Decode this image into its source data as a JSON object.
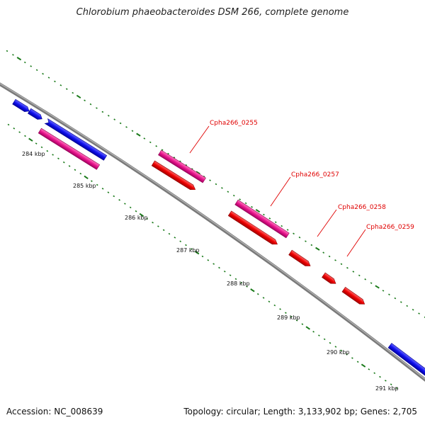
{
  "title": "Chlorobium phaeobacteroides DSM 266, complete genome",
  "footer": {
    "accession": "Accession: NC_008639",
    "summary": "Topology: circular; Length: 3,133,902 bp; Genes: 2,705"
  },
  "colors": {
    "backbone": "#8a8a8a",
    "tick": "#1a7a1a",
    "gene_blue": "#1010ee",
    "gene_magenta": "#e8148c",
    "gene_red": "#ee0000",
    "label": "#e00000"
  },
  "scale_labels": [
    "284 kbp",
    "285 kbp",
    "286 kbp",
    "287 kbp",
    "288 kbp",
    "289 kbp",
    "290 kbp",
    "291 kbp"
  ],
  "gene_labels": [
    "Cpha266_0255",
    "Cpha266_0257",
    "Cpha266_0258",
    "Cpha266_0259"
  ],
  "features": [
    {
      "kind": "blue"
    },
    {
      "kind": "blue"
    },
    {
      "kind": "blue"
    },
    {
      "kind": "magenta"
    },
    {
      "kind": "magenta"
    },
    {
      "kind": "magenta"
    },
    {
      "kind": "red"
    },
    {
      "kind": "red"
    },
    {
      "kind": "red"
    },
    {
      "kind": "red"
    },
    {
      "kind": "red"
    },
    {
      "kind": "blue"
    }
  ]
}
